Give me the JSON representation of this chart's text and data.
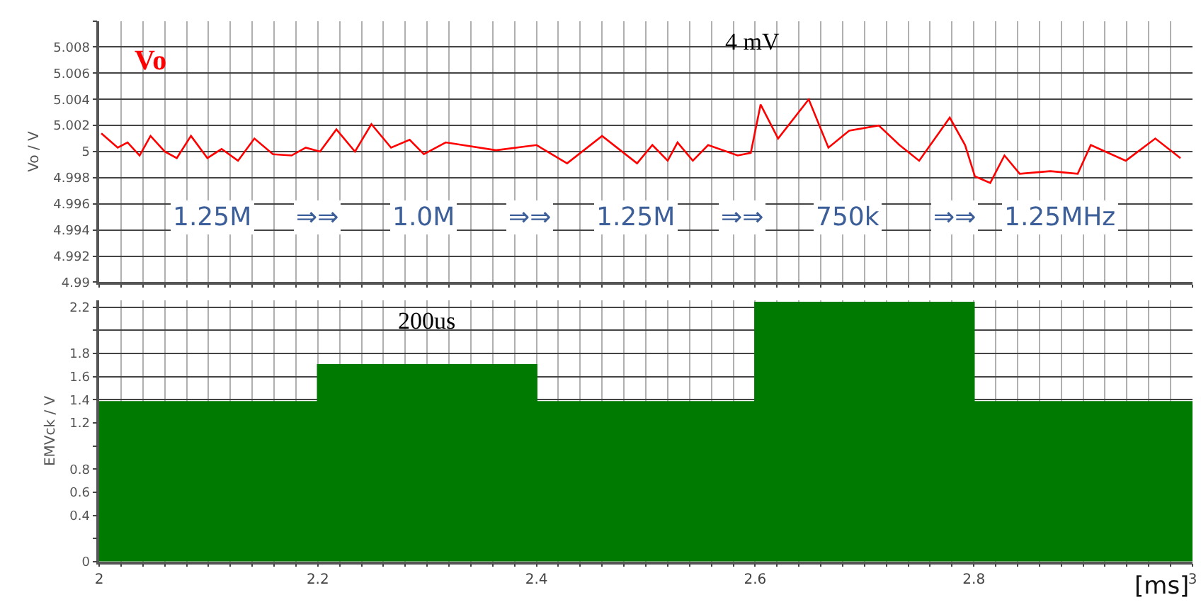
{
  "chart_data": [
    {
      "type": "line",
      "ylabel": "Vo / V",
      "xlim": [
        2,
        3
      ],
      "ylim": [
        4.99,
        5.01
      ],
      "xticks": [
        2,
        {
          "value": 2.02,
          "label": null
        },
        {
          "value": 2.04,
          "label": null
        },
        {
          "value": 2.06,
          "label": null
        },
        {
          "value": 2.08,
          "label": null
        },
        {
          "value": 2.1,
          "label": null
        },
        {
          "value": 2.12,
          "label": null
        },
        {
          "value": 2.14,
          "label": null
        },
        {
          "value": 2.16,
          "label": null
        },
        {
          "value": 2.18,
          "label": null
        },
        2.2,
        {
          "value": 2.22,
          "label": null
        },
        {
          "value": 2.24,
          "label": null
        },
        {
          "value": 2.26,
          "label": null
        },
        {
          "value": 2.28,
          "label": null
        },
        {
          "value": 2.3,
          "label": null
        },
        {
          "value": 2.32,
          "label": null
        },
        {
          "value": 2.34,
          "label": null
        },
        {
          "value": 2.36,
          "label": null
        },
        {
          "value": 2.38,
          "label": null
        },
        2.4,
        {
          "value": 2.42,
          "label": null
        },
        {
          "value": 2.44,
          "label": null
        },
        {
          "value": 2.46,
          "label": null
        },
        {
          "value": 2.48,
          "label": null
        },
        {
          "value": 2.5,
          "label": null
        },
        {
          "value": 2.52,
          "label": null
        },
        {
          "value": 2.54,
          "label": null
        },
        {
          "value": 2.56,
          "label": null
        },
        {
          "value": 2.58,
          "label": null
        },
        2.6,
        {
          "value": 2.62,
          "label": null
        },
        {
          "value": 2.64,
          "label": null
        },
        {
          "value": 2.66,
          "label": null
        },
        {
          "value": 2.68,
          "label": null
        },
        {
          "value": 2.7,
          "label": null
        },
        {
          "value": 2.72,
          "label": null
        },
        {
          "value": 2.74,
          "label": null
        },
        {
          "value": 2.76,
          "label": null
        },
        {
          "value": 2.78,
          "label": null
        },
        2.8,
        {
          "value": 2.82,
          "label": null
        },
        {
          "value": 2.84,
          "label": null
        },
        {
          "value": 2.86,
          "label": null
        },
        {
          "value": 2.88,
          "label": null
        },
        {
          "value": 2.9,
          "label": null
        },
        {
          "value": 2.92,
          "label": null
        },
        {
          "value": 2.94,
          "label": null
        },
        {
          "value": 2.96,
          "label": null
        },
        {
          "value": 2.98,
          "label": null
        },
        3
      ],
      "yticks": [
        4.99,
        4.992,
        4.994,
        4.996,
        4.998,
        5,
        5.002,
        5.004,
        5.006,
        5.008,
        {
          "value": 5.01,
          "label": null
        }
      ],
      "tick_labels": "y",
      "grid": true,
      "legend": false,
      "series": [
        {
          "name": "Vo",
          "color": "#ff0000",
          "x": [
            2.002,
            2.017,
            2.026,
            2.037,
            2.047,
            2.06,
            2.071,
            2.084,
            2.099,
            2.112,
            2.127,
            2.142,
            2.159,
            2.176,
            2.189,
            2.202,
            2.217,
            2.234,
            2.249,
            2.267,
            2.284,
            2.297,
            2.317,
            2.363,
            2.4,
            2.428,
            2.46,
            2.492,
            2.506,
            2.52,
            2.529,
            2.543,
            2.557,
            2.584,
            2.596,
            2.605,
            2.621,
            2.649,
            2.667,
            2.686,
            2.713,
            2.732,
            2.75,
            2.778,
            2.792,
            2.801,
            2.815,
            2.828,
            2.842,
            2.87,
            2.895,
            2.907,
            2.939,
            2.966,
            2.989
          ],
          "values": [
            5.0014,
            5.0003,
            5.0007,
            4.9997,
            5.0012,
            5.0,
            4.9995,
            5.0012,
            4.9995,
            5.0002,
            4.9993,
            5.001,
            4.9998,
            4.9997,
            5.0003,
            5.0,
            5.0017,
            5.0,
            5.0021,
            5.0003,
            5.0009,
            4.9998,
            5.0007,
            5.0001,
            5.0005,
            4.9991,
            5.0012,
            4.9991,
            5.0005,
            4.9993,
            5.0007,
            4.9993,
            5.0005,
            4.9997,
            4.9999,
            5.0036,
            5.001,
            5.004,
            5.0003,
            5.0016,
            5.002,
            5.0005,
            4.9993,
            5.0026,
            5.0005,
            4.9981,
            4.9976,
            4.9997,
            4.9983,
            4.9985,
            4.9983,
            5.0005,
            4.9993,
            5.001,
            4.9995
          ]
        }
      ],
      "annotations": [
        "4 mV",
        "1.25M",
        "⇒⇒",
        "1.0M",
        "⇒⇒",
        "1.25M",
        "⇒⇒",
        "750k",
        "⇒⇒",
        "1.25MHz"
      ]
    },
    {
      "type": "area",
      "ylabel": "EMVck / V",
      "xlabel": "[ms]",
      "xlim": [
        2,
        3
      ],
      "ylim": [
        0,
        2.26
      ],
      "xticks": [
        2,
        {
          "value": 2.02,
          "label": null
        },
        {
          "value": 2.04,
          "label": null
        },
        {
          "value": 2.06,
          "label": null
        },
        {
          "value": 2.08,
          "label": null
        },
        {
          "value": 2.1,
          "label": null
        },
        {
          "value": 2.12,
          "label": null
        },
        {
          "value": 2.14,
          "label": null
        },
        {
          "value": 2.16,
          "label": null
        },
        {
          "value": 2.18,
          "label": null
        },
        2.2,
        {
          "value": 2.22,
          "label": null
        },
        {
          "value": 2.24,
          "label": null
        },
        {
          "value": 2.26,
          "label": null
        },
        {
          "value": 2.28,
          "label": null
        },
        {
          "value": 2.3,
          "label": null
        },
        {
          "value": 2.32,
          "label": null
        },
        {
          "value": 2.34,
          "label": null
        },
        {
          "value": 2.36,
          "label": null
        },
        {
          "value": 2.38,
          "label": null
        },
        2.4,
        {
          "value": 2.42,
          "label": null
        },
        {
          "value": 2.44,
          "label": null
        },
        {
          "value": 2.46,
          "label": null
        },
        {
          "value": 2.48,
          "label": null
        },
        {
          "value": 2.5,
          "label": null
        },
        {
          "value": 2.52,
          "label": null
        },
        {
          "value": 2.54,
          "label": null
        },
        {
          "value": 2.56,
          "label": null
        },
        {
          "value": 2.58,
          "label": null
        },
        2.6,
        {
          "value": 2.62,
          "label": null
        },
        {
          "value": 2.64,
          "label": null
        },
        {
          "value": 2.66,
          "label": null
        },
        {
          "value": 2.68,
          "label": null
        },
        {
          "value": 2.7,
          "label": null
        },
        {
          "value": 2.72,
          "label": null
        },
        {
          "value": 2.74,
          "label": null
        },
        {
          "value": 2.76,
          "label": null
        },
        {
          "value": 2.78,
          "label": null
        },
        2.8,
        {
          "value": 2.82,
          "label": null
        },
        {
          "value": 2.84,
          "label": null
        },
        {
          "value": 2.86,
          "label": null
        },
        {
          "value": 2.88,
          "label": null
        },
        {
          "value": 2.9,
          "label": null
        },
        {
          "value": 2.92,
          "label": null
        },
        {
          "value": 2.94,
          "label": null
        },
        {
          "value": 2.96,
          "label": null
        },
        {
          "value": 2.98,
          "label": null
        },
        3
      ],
      "yticks": [
        0,
        {
          "value": 0.2,
          "label": null
        },
        0.4,
        0.6,
        0.8,
        {
          "value": 1.0,
          "label": null
        },
        1.2,
        1.4,
        1.6,
        1.8,
        {
          "value": 2.0,
          "label": null
        },
        2.2
      ],
      "grid": true,
      "legend": false,
      "series": [
        {
          "color": "#007a00",
          "x": [
            2,
            2.2,
            2.2,
            2.4,
            2.4,
            2.6,
            2.6,
            2.8,
            2.8,
            3
          ],
          "values": [
            1.38,
            1.38,
            1.7,
            1.7,
            1.38,
            1.38,
            2.24,
            2.24,
            1.38,
            1.38
          ]
        }
      ],
      "annotations": [
        "200us"
      ]
    }
  ]
}
